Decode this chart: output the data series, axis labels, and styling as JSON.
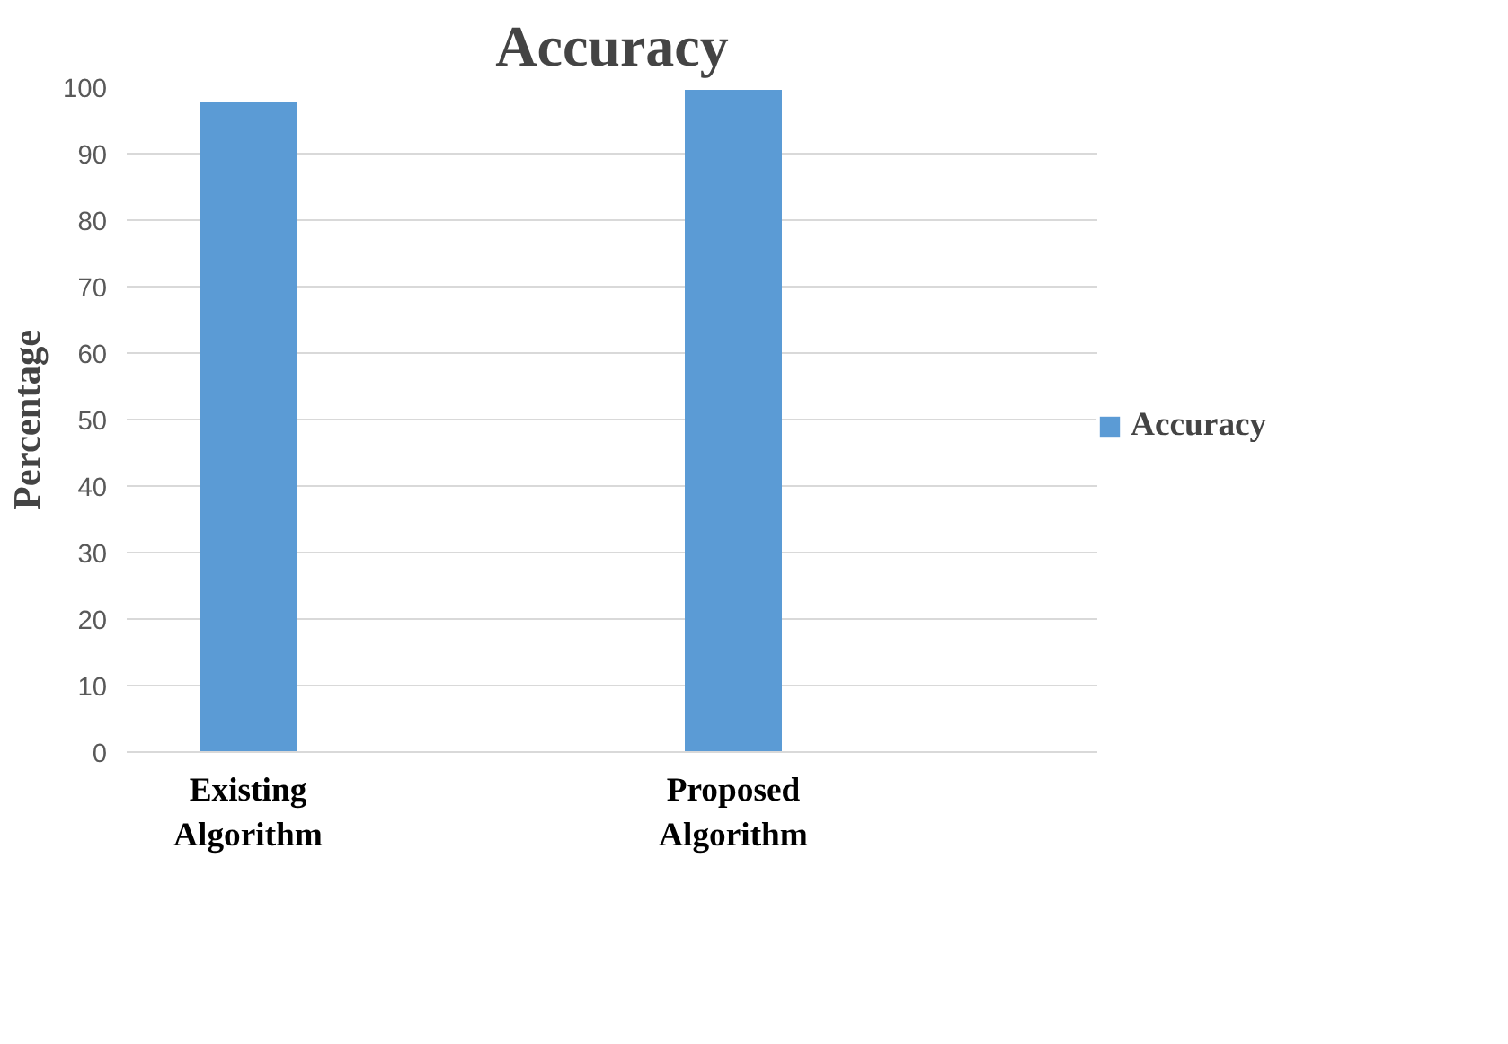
{
  "chart_data": {
    "type": "bar",
    "title": "Accuracy",
    "ylabel": "Percentage",
    "categories": [
      "Existing Algorithm",
      null,
      "Proposed Algorithm",
      null
    ],
    "series": [
      {
        "name": "Accuracy",
        "color": "#5b9bd5",
        "values": [
          97.7,
          null,
          99.6,
          null
        ]
      }
    ],
    "ylim": [
      0,
      100
    ],
    "yticks": [
      0,
      10,
      20,
      30,
      40,
      50,
      60,
      70,
      80,
      90,
      100
    ],
    "grid": "y",
    "legend": "right"
  }
}
